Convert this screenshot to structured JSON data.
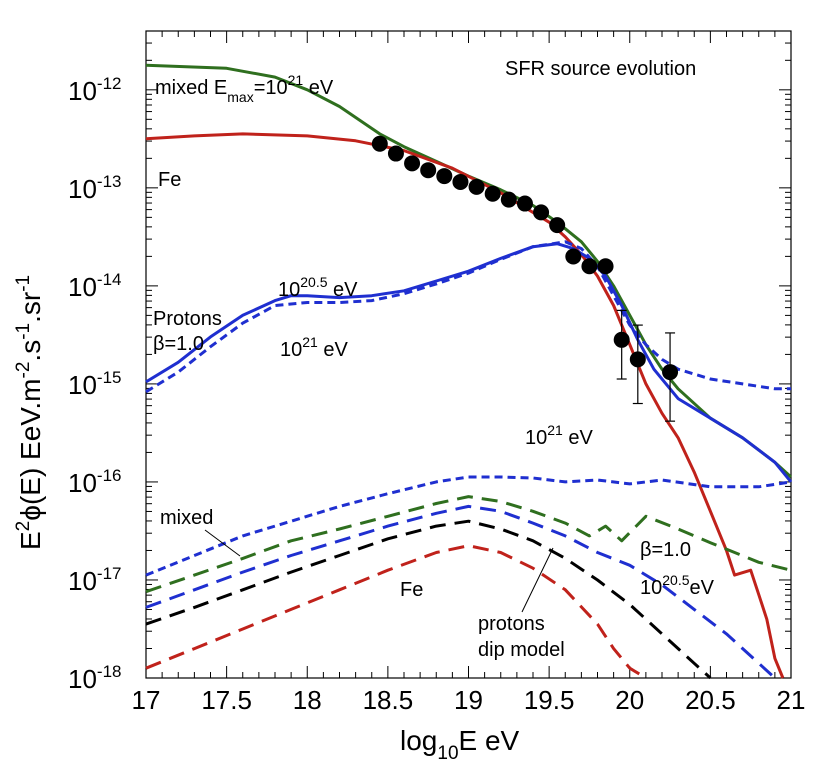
{
  "chart_data": {
    "type": "line",
    "title": "SFR source evolution",
    "xlabel": {
      "main": "log",
      "sub": "10",
      "rest": "E eV"
    },
    "ylabel": {
      "a": "E",
      "sup1": "2",
      "b": "ϕ(E) EeV.m",
      "sup2": "-2",
      "c": ".s",
      "sup3": "-1",
      "d": ".sr",
      "sup4": "-1"
    },
    "xlim": [
      17,
      21
    ],
    "ylim_log10": [
      -18,
      -11.4
    ],
    "x_ticks": [
      {
        "v": 17,
        "label": "17"
      },
      {
        "v": 17.5,
        "label": "17.5"
      },
      {
        "v": 18,
        "label": "18"
      },
      {
        "v": 18.5,
        "label": "18.5"
      },
      {
        "v": 19,
        "label": "19"
      },
      {
        "v": 19.5,
        "label": "19.5"
      },
      {
        "v": 20,
        "label": "20"
      },
      {
        "v": 20.5,
        "label": "20.5"
      },
      {
        "v": 21,
        "label": "21"
      }
    ],
    "y_ticks": [
      {
        "v": -12,
        "base": "10",
        "exp": "-12"
      },
      {
        "v": -13,
        "base": "10",
        "exp": "-13"
      },
      {
        "v": -14,
        "base": "10",
        "exp": "-14"
      },
      {
        "v": -15,
        "base": "10",
        "exp": "-15"
      },
      {
        "v": -16,
        "base": "10",
        "exp": "-16"
      },
      {
        "v": -17,
        "base": "10",
        "exp": "-17"
      },
      {
        "v": -18,
        "base": "10",
        "exp": "-18"
      }
    ],
    "series": [
      {
        "name": "mixed Emax=10^21 eV",
        "color": "#2f6f1f",
        "style": "solid",
        "x": [
          17,
          17.5,
          17.8,
          18.0,
          18.2,
          18.45,
          18.6,
          18.8,
          19.0,
          19.2,
          19.4,
          19.55,
          19.7,
          19.8,
          19.9,
          20.0,
          20.1,
          20.2,
          20.3,
          20.5,
          20.7,
          20.9,
          21.0
        ],
        "y": [
          -11.75,
          -11.78,
          -11.87,
          -12.0,
          -12.17,
          -12.45,
          -12.58,
          -12.73,
          -12.88,
          -13.02,
          -13.18,
          -13.35,
          -13.55,
          -13.75,
          -14.0,
          -14.3,
          -14.6,
          -14.85,
          -15.05,
          -15.35,
          -15.55,
          -15.8,
          -15.95
        ]
      },
      {
        "name": "Fe Emax=10^21 eV",
        "color": "#c0221b",
        "style": "solid",
        "x": [
          17,
          17.3,
          17.6,
          18.0,
          18.3,
          18.6,
          18.9,
          19.2,
          19.5,
          19.6,
          19.7,
          19.8,
          19.9,
          20.0,
          20.1,
          20.2,
          20.3,
          20.4,
          20.5,
          20.6,
          20.65,
          20.75,
          20.8,
          20.85,
          20.9,
          20.95
        ],
        "y": [
          -12.5,
          -12.47,
          -12.45,
          -12.47,
          -12.52,
          -12.62,
          -12.8,
          -13.05,
          -13.35,
          -13.5,
          -13.68,
          -13.9,
          -14.2,
          -14.6,
          -15.0,
          -15.3,
          -15.55,
          -15.9,
          -16.3,
          -16.7,
          -16.95,
          -16.9,
          -17.15,
          -17.4,
          -17.8,
          -18.0
        ]
      },
      {
        "name": "Protons Emax=10^20.5 eV",
        "color": "#1f2fd0",
        "style": "solid",
        "x": [
          17,
          17.2,
          17.4,
          17.6,
          17.8,
          17.9,
          18.0,
          18.2,
          18.4,
          18.6,
          18.8,
          19.0,
          19.2,
          19.4,
          19.55,
          19.65,
          19.75,
          19.85,
          19.95,
          20.05,
          20.15,
          20.3,
          20.5,
          20.7,
          20.9,
          21.0
        ],
        "y": [
          -14.98,
          -14.78,
          -14.52,
          -14.3,
          -14.15,
          -14.1,
          -14.1,
          -14.12,
          -14.1,
          -14.05,
          -13.95,
          -13.85,
          -13.72,
          -13.6,
          -13.57,
          -13.62,
          -13.72,
          -13.9,
          -14.2,
          -14.55,
          -14.85,
          -15.15,
          -15.35,
          -15.55,
          -15.8,
          -16.0
        ]
      },
      {
        "name": "Protons Emax=10^21 eV",
        "color": "#1f2fd0",
        "style": "dashed",
        "x": [
          17,
          17.2,
          17.4,
          17.6,
          17.8,
          18.0,
          18.2,
          18.4,
          18.6,
          18.8,
          19.0,
          19.2,
          19.4,
          19.6,
          19.7,
          19.8,
          19.9,
          20.0,
          20.1,
          20.2,
          20.3,
          20.5,
          20.7,
          20.9,
          21.0
        ],
        "y": [
          -15.08,
          -14.88,
          -14.62,
          -14.38,
          -14.2,
          -14.17,
          -14.17,
          -14.15,
          -14.08,
          -13.98,
          -13.87,
          -13.73,
          -13.6,
          -13.55,
          -13.62,
          -13.8,
          -14.1,
          -14.4,
          -14.6,
          -14.75,
          -14.85,
          -14.95,
          -15.0,
          -15.05,
          -15.05
        ]
      },
      {
        "name": "protons 10^21 eV (low)",
        "color": "#1f2fd0",
        "style": "dashed",
        "x": [
          17,
          17.3,
          17.6,
          17.9,
          18.2,
          18.5,
          18.8,
          19.0,
          19.2,
          19.4,
          19.6,
          19.8,
          20.0,
          20.2,
          20.5,
          20.8,
          21.0
        ],
        "y": [
          -16.95,
          -16.75,
          -16.55,
          -16.4,
          -16.25,
          -16.12,
          -16.0,
          -15.95,
          -15.95,
          -15.96,
          -16.0,
          -15.98,
          -16.02,
          -15.98,
          -16.05,
          -16.05,
          -16.0
        ]
      },
      {
        "name": "mixed (low)",
        "color": "#2f6f1f",
        "style": "dashed",
        "x": [
          17,
          17.3,
          17.6,
          17.9,
          18.2,
          18.5,
          18.8,
          19.0,
          19.2,
          19.4,
          19.6,
          19.75,
          19.85,
          19.95,
          20.1,
          20.3,
          20.5,
          20.8,
          21.0
        ],
        "y": [
          -17.12,
          -16.95,
          -16.78,
          -16.6,
          -16.48,
          -16.35,
          -16.22,
          -16.15,
          -16.2,
          -16.3,
          -16.42,
          -16.55,
          -16.45,
          -16.6,
          -16.35,
          -16.48,
          -16.62,
          -16.82,
          -16.9
        ]
      },
      {
        "name": "beta=1.0 10^20.5 eV (low)",
        "color": "#1f2fd0",
        "style": "dashed",
        "x": [
          17,
          17.3,
          17.6,
          17.9,
          18.2,
          18.5,
          18.8,
          19.0,
          19.2,
          19.4,
          19.6,
          19.8,
          20.0,
          20.2,
          20.4,
          20.6,
          20.8,
          20.9
        ],
        "y": [
          -17.28,
          -17.1,
          -16.92,
          -16.75,
          -16.6,
          -16.45,
          -16.32,
          -16.25,
          -16.3,
          -16.42,
          -16.55,
          -16.72,
          -16.85,
          -17.05,
          -17.3,
          -17.55,
          -17.85,
          -18.0
        ]
      },
      {
        "name": "protons dip model",
        "color": "#000000",
        "style": "dashed",
        "x": [
          17,
          17.3,
          17.6,
          17.9,
          18.2,
          18.5,
          18.8,
          19.0,
          19.2,
          19.4,
          19.6,
          19.8,
          20.0,
          20.2,
          20.4,
          20.5
        ],
        "y": [
          -17.45,
          -17.28,
          -17.1,
          -16.92,
          -16.75,
          -16.58,
          -16.45,
          -16.4,
          -16.48,
          -16.6,
          -16.78,
          -17.0,
          -17.25,
          -17.55,
          -17.85,
          -18.0
        ]
      },
      {
        "name": "Fe (low)",
        "color": "#c0221b",
        "style": "dashed",
        "x": [
          17,
          17.3,
          17.6,
          17.9,
          18.2,
          18.5,
          18.8,
          19.0,
          19.2,
          19.4,
          19.6,
          19.8,
          19.9,
          20.0,
          20.1
        ],
        "y": [
          -17.9,
          -17.7,
          -17.5,
          -17.3,
          -17.1,
          -16.9,
          -16.72,
          -16.65,
          -16.72,
          -16.88,
          -17.1,
          -17.45,
          -17.7,
          -17.9,
          -18.0
        ]
      }
    ],
    "data_points": {
      "x": [
        18.45,
        18.55,
        18.65,
        18.75,
        18.85,
        18.95,
        19.05,
        19.15,
        19.25,
        19.35,
        19.45,
        19.55,
        19.65,
        19.75,
        19.85,
        19.95,
        20.05,
        20.25
      ],
      "y": [
        -12.55,
        -12.65,
        -12.75,
        -12.82,
        -12.88,
        -12.94,
        -12.99,
        -13.06,
        -13.12,
        -13.16,
        -13.25,
        -13.38,
        -13.7,
        -13.8,
        -13.8,
        -14.55,
        -14.75,
        -14.88
      ],
      "err_hi": [
        0,
        0,
        0,
        0,
        0,
        0,
        0,
        0,
        0,
        0,
        0,
        0,
        0,
        0,
        0,
        0.3,
        0.35,
        0.4
      ],
      "err_lo": [
        0,
        0,
        0,
        0,
        0,
        0,
        0,
        0,
        0,
        0,
        0,
        0,
        0,
        0,
        0,
        0.4,
        0.45,
        0.5
      ]
    },
    "annotations": {
      "title": "SFR source evolution",
      "mixed_top": {
        "a": "mixed E",
        "sub": "max",
        "b": "=10",
        "sup": "21",
        "c": " eV"
      },
      "fe_top": "Fe",
      "e205": {
        "a": "10",
        "sup": "20.5",
        "b": " eV"
      },
      "protons": "Protons",
      "beta_top": "β=1.0",
      "e21": {
        "a": "10",
        "sup": "21",
        "b": " eV"
      },
      "e21_low": {
        "a": "10",
        "sup": "21",
        "b": " eV"
      },
      "mixed_low": "mixed",
      "fe_low": "Fe",
      "beta_low": "β=1.0",
      "e205_low": {
        "a": "10",
        "sup": "20.5",
        "b": "eV"
      },
      "protons_dip_1": "protons",
      "protons_dip_2": "dip model"
    }
  }
}
